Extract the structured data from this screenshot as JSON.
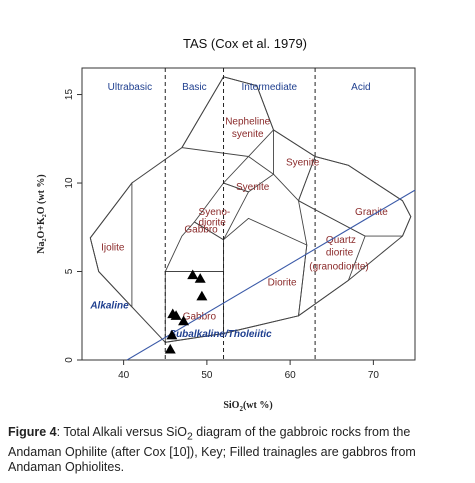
{
  "chart_data": {
    "type": "scatter",
    "title": "TAS (Cox et al. 1979)",
    "xlabel_main": "SiO",
    "xlabel_sub": "2",
    "xlabel_unit": "(wt %)",
    "ylabel": "Na₂O+K₂O (wt %)",
    "xlim": [
      35,
      75
    ],
    "ylim": [
      0,
      16.5
    ],
    "x_ticks": [
      40,
      50,
      60,
      70
    ],
    "y_ticks": [
      0,
      5,
      10,
      15
    ],
    "grid": false,
    "region_boundaries": [
      45,
      52,
      63
    ],
    "regions": [
      "Ultrabasic",
      "Basic",
      "Intermediate",
      "Acid"
    ],
    "fields": [
      {
        "name": "Ijolite",
        "label_x": 37.3,
        "label_y": 6.2,
        "polygon": [
          [
            41,
            3
          ],
          [
            37,
            5
          ],
          [
            36,
            6.9
          ],
          [
            41,
            10
          ],
          [
            41,
            3
          ]
        ]
      },
      {
        "name": "Gabbro",
        "label_x": 47.1,
        "label_y": 2.3,
        "polygon": [
          [
            45,
            1
          ],
          [
            45,
            5
          ],
          [
            52,
            5
          ],
          [
            52,
            1.5
          ],
          [
            45,
            1
          ]
        ]
      },
      {
        "name": "Gabbro",
        "label_x": 47.3,
        "label_y": 7.2,
        "polygon": [
          [
            45,
            5
          ],
          [
            47,
            7
          ],
          [
            48.5,
            7.8
          ],
          [
            52,
            6.8
          ],
          [
            52,
            5
          ],
          [
            45,
            5
          ]
        ]
      },
      {
        "name": "Syeno-",
        "label_x": 49.0,
        "label_y": 8.2,
        "polygon": [
          [
            48.5,
            7.8
          ],
          [
            52,
            10
          ],
          [
            55,
            9.5
          ],
          [
            52,
            6.8
          ],
          [
            48.5,
            7.8
          ]
        ]
      },
      {
        "name": "diorite",
        "label_x": 49.0,
        "label_y": 7.6
      },
      {
        "name": "Syenite",
        "label_x": 53.5,
        "label_y": 9.6,
        "polygon": [
          [
            52,
            10
          ],
          [
            55,
            11.5
          ],
          [
            58,
            10.5
          ],
          [
            55,
            9.5
          ],
          [
            52,
            10
          ]
        ]
      },
      {
        "name": "Nepheline",
        "label_x": 52.2,
        "label_y": 13.3,
        "polygon": [
          [
            47,
            12
          ],
          [
            52,
            16
          ],
          [
            56,
            15.5
          ],
          [
            58,
            13
          ],
          [
            55,
            11.5
          ],
          [
            47,
            12
          ]
        ]
      },
      {
        "name": "syenite",
        "label_x": 53.0,
        "label_y": 12.6
      },
      {
        "name": "Syenite",
        "label_x": 59.5,
        "label_y": 11.0,
        "polygon": [
          [
            58,
            13
          ],
          [
            63,
            11.5
          ],
          [
            61,
            9
          ],
          [
            58,
            10.5
          ],
          [
            58,
            13
          ]
        ]
      },
      {
        "name": "Diorite",
        "label_x": 57.3,
        "label_y": 4.2,
        "polygon": [
          [
            52,
            1.5
          ],
          [
            52,
            6.8
          ],
          [
            55,
            8
          ],
          [
            62,
            6.5
          ],
          [
            61,
            2.5
          ],
          [
            52,
            1.5
          ]
        ]
      },
      {
        "name": "Quartz",
        "label_x": 64.3,
        "label_y": 6.6,
        "polygon": [
          [
            61,
            9
          ],
          [
            62,
            6.5
          ],
          [
            61,
            2.5
          ],
          [
            67,
            4.5
          ],
          [
            69,
            7
          ],
          [
            63,
            8.5
          ],
          [
            61,
            9
          ]
        ]
      },
      {
        "name": "diorite",
        "label_x": 64.3,
        "label_y": 5.9
      },
      {
        "name": "(granodiorite)",
        "label_x": 62.3,
        "label_y": 5.1
      },
      {
        "name": "Granite",
        "label_x": 67.8,
        "label_y": 8.2,
        "polygon": [
          [
            63,
            11.5
          ],
          [
            67,
            11
          ],
          [
            73.5,
            9
          ],
          [
            74.5,
            8.1
          ],
          [
            73.5,
            7
          ],
          [
            69,
            7
          ],
          [
            63,
            8.5
          ],
          [
            61,
            9
          ],
          [
            63,
            11.5
          ]
        ]
      }
    ],
    "outline": [
      [
        37,
        5
      ],
      [
        41,
        3
      ],
      [
        45,
        1
      ],
      [
        52,
        1.5
      ],
      [
        61,
        2.5
      ],
      [
        67,
        4.5
      ],
      [
        73.5,
        7
      ],
      [
        74.5,
        8.1
      ],
      [
        73.5,
        9
      ],
      [
        67,
        11
      ],
      [
        63,
        11.5
      ],
      [
        58,
        13
      ],
      [
        56,
        15.5
      ],
      [
        52,
        16
      ],
      [
        47,
        12
      ],
      [
        41,
        10
      ],
      [
        36,
        6.9
      ],
      [
        37,
        5
      ]
    ],
    "alkaline_divider": [
      [
        35,
        -1.5
      ],
      [
        75,
        9.6
      ]
    ],
    "alkaline_label": "Alkaline",
    "subalkaline_label": "Subalkaline/Tholeiitic",
    "series": [
      {
        "name": "Gabbros",
        "marker": "filled-triangle",
        "points": [
          {
            "x": 48.3,
            "y": 4.8
          },
          {
            "x": 49.2,
            "y": 4.6
          },
          {
            "x": 49.4,
            "y": 3.6
          },
          {
            "x": 45.9,
            "y": 2.6
          },
          {
            "x": 46.3,
            "y": 2.5
          },
          {
            "x": 47.2,
            "y": 2.2
          },
          {
            "x": 45.8,
            "y": 1.4
          },
          {
            "x": 45.6,
            "y": 0.6
          }
        ]
      }
    ]
  },
  "caption": {
    "label": "Figure 4",
    "text_before_sub": ": Total Alkali versus SiO",
    "sub": "2",
    "text_after_sub": " diagram of the gabbroic rocks from the Andaman Ophilite (after Cox [10]), Key; Filled trainagles are gabbros from Andaman Ophiolites."
  }
}
